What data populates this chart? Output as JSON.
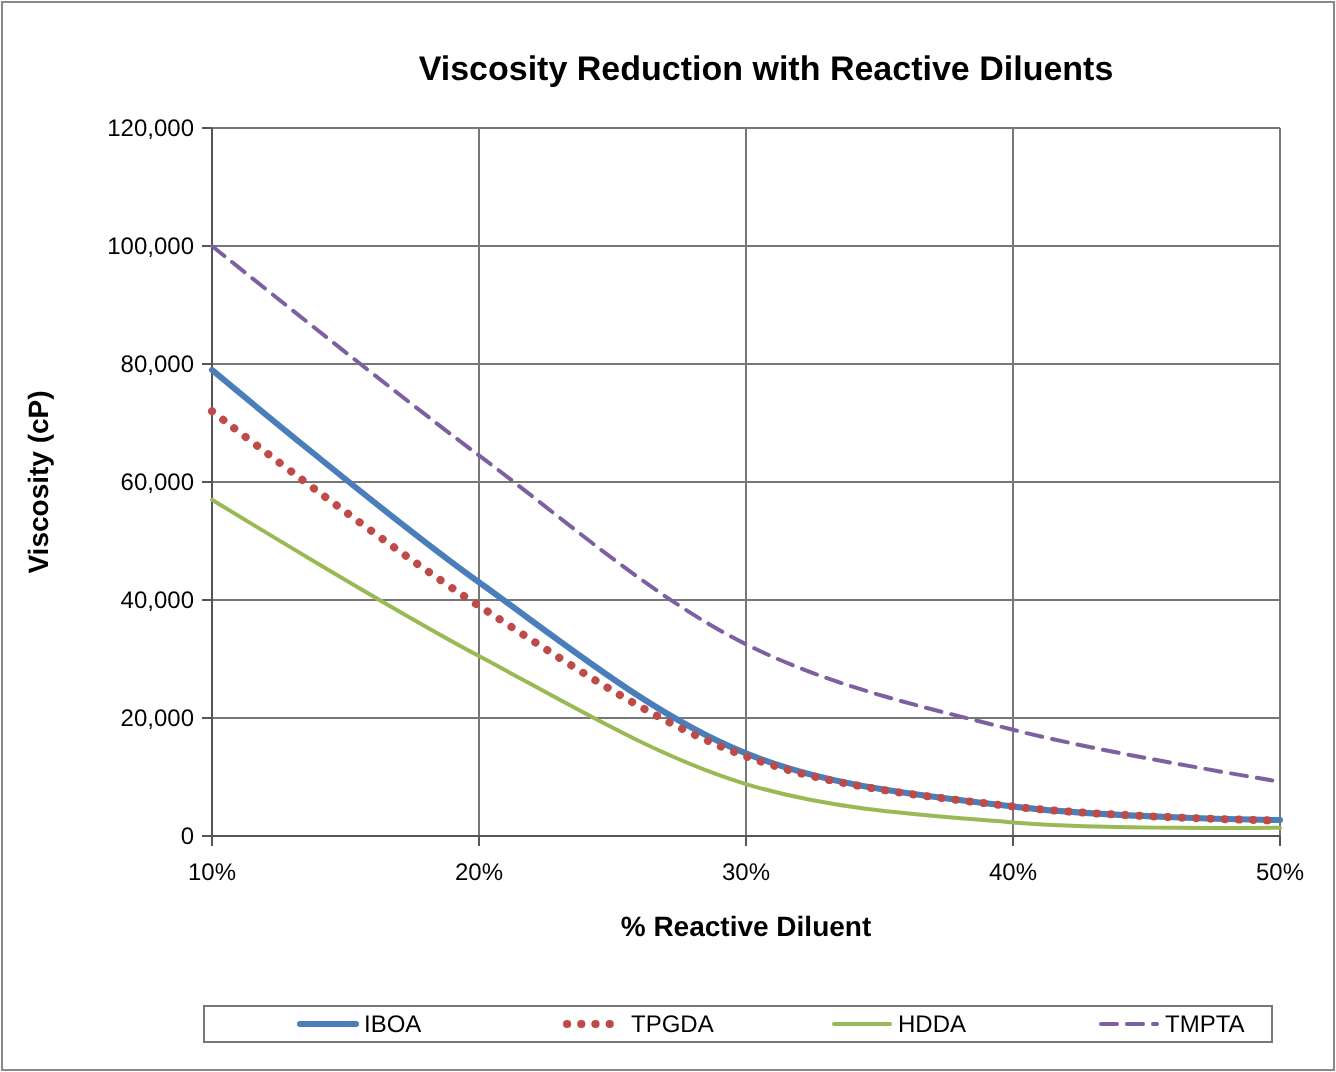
{
  "chart_data": {
    "type": "line",
    "title": "Viscosity Reduction with Reactive Diluents",
    "xlabel": "% Reactive Diluent",
    "ylabel": "Viscosity (cP)",
    "x": [
      10,
      20,
      30,
      40,
      50
    ],
    "xlim": [
      10,
      50
    ],
    "xticks": [
      {
        "value": 10,
        "label": "10%"
      },
      {
        "value": 20,
        "label": "20%"
      },
      {
        "value": 30,
        "label": "30%"
      },
      {
        "value": 40,
        "label": "40%"
      },
      {
        "value": 50,
        "label": "50%"
      }
    ],
    "ylim": [
      0,
      120000
    ],
    "yticks": [
      {
        "value": 0,
        "label": "0"
      },
      {
        "value": 20000,
        "label": "20,000"
      },
      {
        "value": 40000,
        "label": "40,000"
      },
      {
        "value": 60000,
        "label": "60,000"
      },
      {
        "value": 80000,
        "label": "80,000"
      },
      {
        "value": 100000,
        "label": "100,000"
      },
      {
        "value": 120000,
        "label": "120,000"
      }
    ],
    "grid": true,
    "legend": "bottom",
    "marker": "none",
    "series": [
      {
        "name": "IBOA",
        "color": "#4a7ebb",
        "line_style": "solid",
        "values": [
          79000,
          43000,
          14000,
          5000,
          2700
        ]
      },
      {
        "name": "TPGDA",
        "color": "#be4b48",
        "line_style": "dotted",
        "values": [
          72000,
          39000,
          13500,
          5000,
          2600
        ]
      },
      {
        "name": "HDDA",
        "color": "#98b954",
        "line_style": "solid",
        "values": [
          57000,
          30500,
          8800,
          2300,
          1400
        ]
      },
      {
        "name": "TMPTA",
        "color": "#7d60a0",
        "line_style": "dashed",
        "values": [
          100000,
          64500,
          32500,
          18000,
          9200
        ]
      }
    ]
  }
}
